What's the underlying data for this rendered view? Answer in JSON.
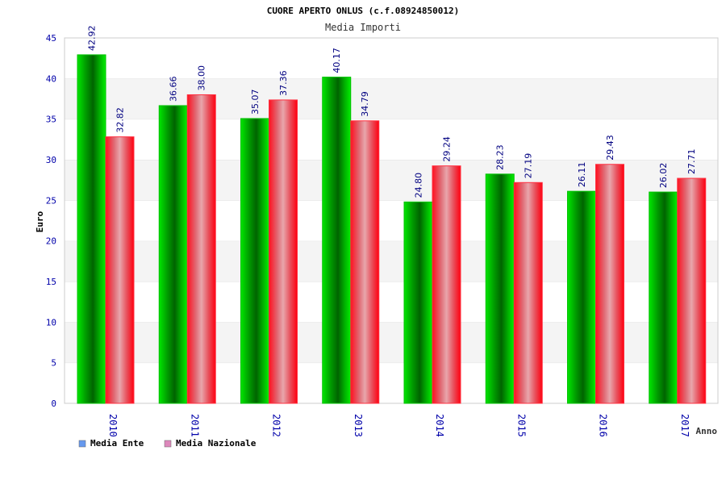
{
  "chart_data": {
    "type": "bar",
    "title": "CUORE APERTO ONLUS (c.f.08924850012)",
    "subtitle": "Media Importi",
    "xlabel": "Anno",
    "ylabel": "Euro",
    "categories": [
      "2010",
      "2011",
      "2012",
      "2013",
      "2014",
      "2015",
      "2016",
      "2017"
    ],
    "series": [
      {
        "name": "Media Ente",
        "values": [
          42.92,
          36.66,
          35.07,
          40.17,
          24.8,
          28.23,
          26.11,
          26.02
        ],
        "labels": [
          "42.92",
          "36.66",
          "35.07",
          "40.17",
          "24.80",
          "28.23",
          "26.11",
          "26.02"
        ],
        "color": "#00b400",
        "legend_color": "#6699ee"
      },
      {
        "name": "Media Nazionale",
        "values": [
          32.82,
          38.0,
          37.36,
          34.79,
          29.24,
          27.19,
          29.43,
          27.71
        ],
        "labels": [
          "32.82",
          "38.00",
          "37.36",
          "34.79",
          "29.24",
          "27.19",
          "29.43",
          "27.71"
        ],
        "color": "#ee1122",
        "legend_color": "#dd88bb"
      }
    ],
    "ylim": [
      0,
      45
    ],
    "yticks": [
      "0",
      "5",
      "10",
      "15",
      "20",
      "25",
      "30",
      "35",
      "40",
      "45"
    ],
    "grid": true,
    "legend": "bottom-left"
  }
}
